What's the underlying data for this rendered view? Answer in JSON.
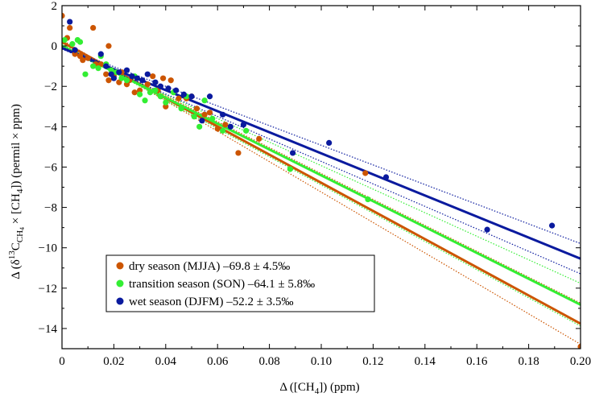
{
  "chart_data": {
    "type": "scatter",
    "title": "",
    "xlabel": {
      "prefix": "Δ ([CH",
      "sub": "4",
      "suffix": "]) (ppm)"
    },
    "ylabel": {
      "prefix": "Δ (δ",
      "sup": "13",
      "mid1": "C",
      "sub1": "CH",
      "sub1b": "4",
      "mid2": " × [CH",
      "sub2": "4",
      "suffix": "]) (permil × ppm)"
    },
    "xlim": [
      0,
      0.2
    ],
    "ylim": [
      -15,
      2
    ],
    "xticks": [
      0,
      0.02,
      0.04,
      0.06,
      0.08,
      0.1,
      0.12,
      0.14,
      0.16,
      0.18,
      0.2
    ],
    "xtick_labels": [
      "0",
      "0.02",
      "0.04",
      "0.06",
      "0.08",
      "0.10",
      "0.12",
      "0.14",
      "0.16",
      "0.18",
      "0.20"
    ],
    "yticks": [
      2,
      0,
      -2,
      -4,
      -6,
      -8,
      -10,
      -12,
      -14
    ],
    "ytick_labels": [
      "2",
      "0",
      "−2",
      "−4",
      "−6",
      "−8",
      "−10",
      "−12",
      "−14"
    ],
    "legend_position": "bottom-left",
    "series": [
      {
        "name": "dry season (MJJA) –69.8 ± 4.5‰",
        "color": "#cc5500",
        "fit": {
          "intercept": 0.2,
          "slope": -69.8,
          "lower_intercept": 0.3,
          "lower_slope": -75.4,
          "upper_intercept": 0.1,
          "upper_slope": -64.2
        },
        "points": [
          [
            0,
            1.5
          ],
          [
            0.002,
            0.4
          ],
          [
            0.003,
            0.9
          ],
          [
            0.005,
            -0.4
          ],
          [
            0.007,
            -0.5
          ],
          [
            0.008,
            -0.7
          ],
          [
            0.01,
            -0.6
          ],
          [
            0.012,
            0.9
          ],
          [
            0.013,
            -0.9
          ],
          [
            0.015,
            -0.9
          ],
          [
            0.017,
            -1.4
          ],
          [
            0.018,
            0.0
          ],
          [
            0.018,
            -1.7
          ],
          [
            0.02,
            -1.5
          ],
          [
            0.022,
            -1.8
          ],
          [
            0.023,
            -1.3
          ],
          [
            0.025,
            -1.9
          ],
          [
            0.026,
            -1.7
          ],
          [
            0.028,
            -2.3
          ],
          [
            0.03,
            -2.2
          ],
          [
            0.033,
            -1.9
          ],
          [
            0.035,
            -1.5
          ],
          [
            0.037,
            -2.2
          ],
          [
            0.039,
            -1.6
          ],
          [
            0.04,
            -3.0
          ],
          [
            0.042,
            -1.7
          ],
          [
            0.045,
            -2.6
          ],
          [
            0.048,
            -2.6
          ],
          [
            0.05,
            -2.5
          ],
          [
            0.052,
            -3.1
          ],
          [
            0.055,
            -3.4
          ],
          [
            0.057,
            -3.3
          ],
          [
            0.06,
            -4.1
          ],
          [
            0.063,
            -3.9
          ],
          [
            0.068,
            -5.3
          ],
          [
            0.076,
            -4.6
          ],
          [
            0.117,
            -6.3
          ],
          [
            0.2,
            -14.9
          ]
        ]
      },
      {
        "name": "transition season (SON) –64.1 ± 5.8‰",
        "color": "#33ee33",
        "fit": {
          "intercept": 0.0,
          "slope": -64.1,
          "lower_intercept": 0.1,
          "lower_slope": -69.9,
          "upper_intercept": -0.1,
          "upper_slope": -58.3
        },
        "points": [
          [
            0.001,
            0.3
          ],
          [
            0.004,
            0.1
          ],
          [
            0.006,
            0.3
          ],
          [
            0.007,
            0.2
          ],
          [
            0.009,
            -1.4
          ],
          [
            0.012,
            -1.0
          ],
          [
            0.014,
            -1.1
          ],
          [
            0.015,
            -0.5
          ],
          [
            0.017,
            -0.9
          ],
          [
            0.019,
            -1.2
          ],
          [
            0.021,
            -1.3
          ],
          [
            0.023,
            -1.6
          ],
          [
            0.025,
            -1.7
          ],
          [
            0.028,
            -1.5
          ],
          [
            0.03,
            -2.4
          ],
          [
            0.032,
            -2.7
          ],
          [
            0.034,
            -2.3
          ],
          [
            0.036,
            -2.2
          ],
          [
            0.038,
            -2.5
          ],
          [
            0.04,
            -2.8
          ],
          [
            0.043,
            -2.3
          ],
          [
            0.046,
            -3.1
          ],
          [
            0.048,
            -2.5
          ],
          [
            0.051,
            -3.5
          ],
          [
            0.053,
            -4.0
          ],
          [
            0.055,
            -2.7
          ],
          [
            0.058,
            -3.6
          ],
          [
            0.062,
            -4.2
          ],
          [
            0.071,
            -4.2
          ],
          [
            0.088,
            -6.1
          ],
          [
            0.118,
            -7.6
          ]
        ]
      },
      {
        "name": "wet season (DJFM) –52.2 ± 3.5‰",
        "color": "#0a1a9e",
        "fit": {
          "intercept": -0.1,
          "slope": -52.2,
          "lower_intercept": -0.15,
          "lower_slope": -55.7,
          "upper_intercept": -0.05,
          "upper_slope": -48.7
        },
        "points": [
          [
            0.003,
            1.2
          ],
          [
            0.005,
            -0.2
          ],
          [
            0.015,
            -0.4
          ],
          [
            0.017,
            -1.0
          ],
          [
            0.019,
            -1.4
          ],
          [
            0.02,
            -1.6
          ],
          [
            0.022,
            -1.3
          ],
          [
            0.025,
            -1.2
          ],
          [
            0.027,
            -1.5
          ],
          [
            0.029,
            -1.6
          ],
          [
            0.031,
            -1.7
          ],
          [
            0.033,
            -1.4
          ],
          [
            0.036,
            -1.8
          ],
          [
            0.038,
            -2.0
          ],
          [
            0.041,
            -2.1
          ],
          [
            0.044,
            -2.2
          ],
          [
            0.047,
            -2.4
          ],
          [
            0.05,
            -2.5
          ],
          [
            0.054,
            -3.7
          ],
          [
            0.057,
            -2.5
          ],
          [
            0.062,
            -3.4
          ],
          [
            0.065,
            -4.0
          ],
          [
            0.07,
            -3.9
          ],
          [
            0.089,
            -5.3
          ],
          [
            0.103,
            -4.8
          ],
          [
            0.125,
            -6.5
          ],
          [
            0.164,
            -9.1
          ],
          [
            0.189,
            -8.9
          ]
        ]
      }
    ]
  }
}
